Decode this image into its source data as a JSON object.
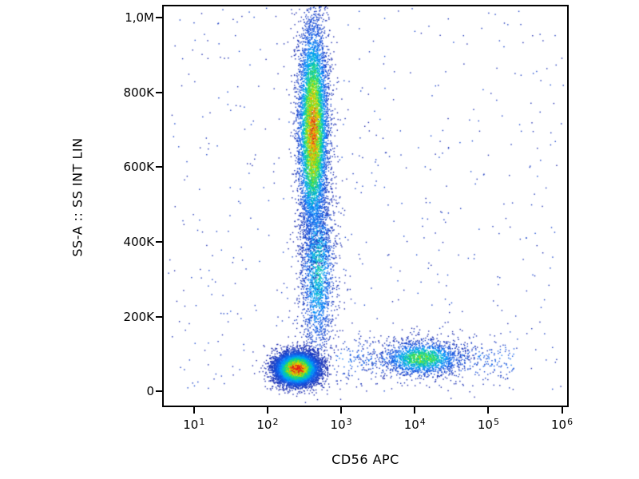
{
  "figure": {
    "background": "#ffffff",
    "frame_color": "#000000"
  },
  "chart_data": {
    "type": "scatter",
    "subtype": "flow-cytometry-density",
    "title": "",
    "xlabel": "CD56 APC",
    "ylabel": "SS-A :: SS INT LIN",
    "x_scale": "log10",
    "x_range_log": [
      0.59,
      6.07
    ],
    "x_ticks": [
      {
        "base": "10",
        "exp": "1",
        "log": 1
      },
      {
        "base": "10",
        "exp": "2",
        "log": 2
      },
      {
        "base": "10",
        "exp": "3",
        "log": 3
      },
      {
        "base": "10",
        "exp": "4",
        "log": 4
      },
      {
        "base": "10",
        "exp": "5",
        "log": 5
      },
      {
        "base": "10",
        "exp": "6",
        "log": 6
      }
    ],
    "y_scale": "linear",
    "y_range_K": [
      -38,
      1030
    ],
    "y_ticks": [
      {
        "value_K": 0,
        "label": "0"
      },
      {
        "value_K": 200,
        "label": "200K"
      },
      {
        "value_K": 400,
        "label": "400K"
      },
      {
        "value_K": 600,
        "label": "600K"
      },
      {
        "value_K": 800,
        "label": "800K"
      },
      {
        "value_K": 1000,
        "label": "1,0M"
      }
    ],
    "grid": false,
    "legend": false,
    "colormap": [
      [
        0.0,
        "#1c28aa"
      ],
      [
        0.2,
        "#145ae6"
      ],
      [
        0.35,
        "#00a0ff"
      ],
      [
        0.5,
        "#00d2a0"
      ],
      [
        0.62,
        "#46e13c"
      ],
      [
        0.75,
        "#bee100"
      ],
      [
        0.85,
        "#ffc800"
      ],
      [
        0.93,
        "#ff7814"
      ],
      [
        1.0,
        "#e11919"
      ]
    ],
    "populations": [
      {
        "name": "debris-scatter",
        "type": "uniform",
        "lx_min": 0.65,
        "lx_max": 6.02,
        "y_min_K": 0,
        "y_max_K": 1025,
        "n": 560,
        "peak": 0.14
      },
      {
        "name": "cd56-band",
        "type": "band",
        "lx_min": 2.9,
        "lx_max": 5.35,
        "y_K": 85,
        "sy_K": 32,
        "n": 520,
        "peak": 0.22
      },
      {
        "name": "monocyte-bridge",
        "type": "gauss",
        "lx": 2.68,
        "sx": 0.12,
        "y_K": 330,
        "sy_K": 130,
        "n": 2200,
        "peak": 0.45
      },
      {
        "name": "nk-cd56pos",
        "type": "gauss",
        "lx": 4.1,
        "sx": 0.28,
        "y_K": 88,
        "sy_K": 24,
        "n": 1700,
        "peak": 0.62
      },
      {
        "name": "granulocytes",
        "type": "gauss",
        "lx": 2.62,
        "sx": 0.105,
        "y_K": 700,
        "sy_K": 150,
        "n": 6500,
        "peak": 0.9
      },
      {
        "name": "lymphocytes",
        "type": "gauss",
        "lx": 2.4,
        "sx": 0.15,
        "y_K": 60,
        "sy_K": 22,
        "n": 7500,
        "peak": 1.0
      }
    ]
  }
}
